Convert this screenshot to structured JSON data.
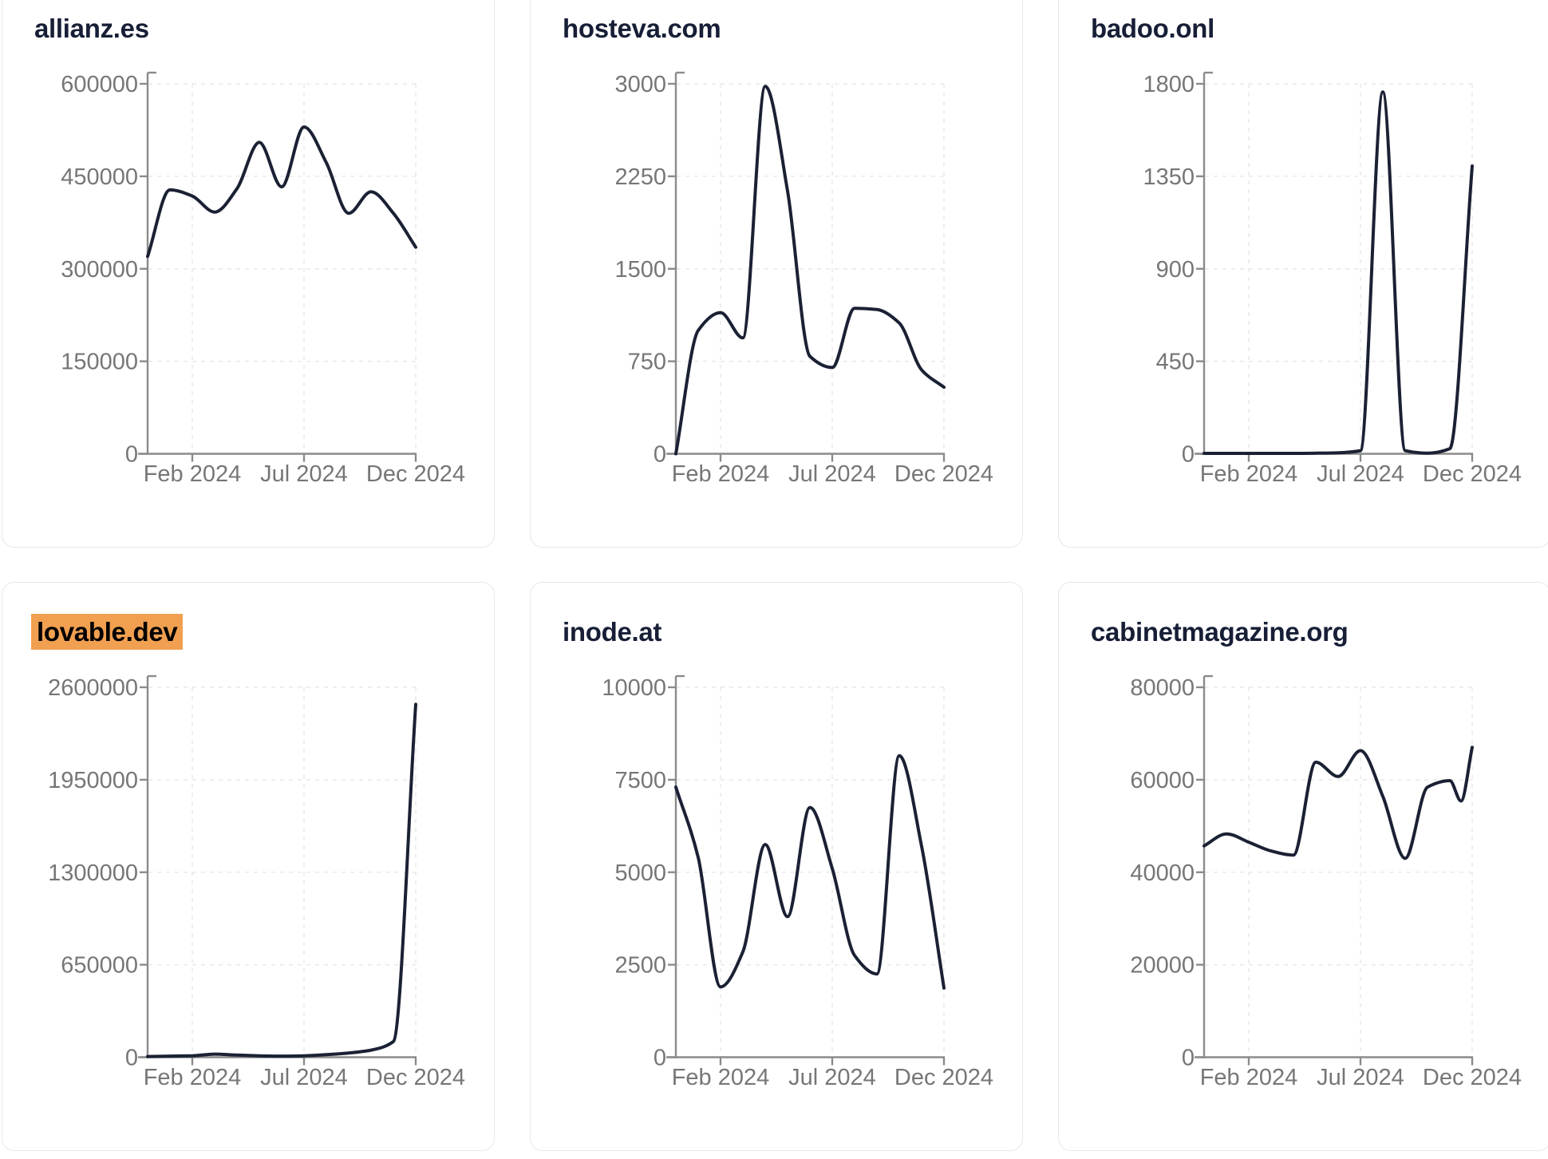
{
  "page": {
    "description": "Dashboard grid of six website-traffic line charts for 2024",
    "x_axis_note": "x = months since Dec 2023 (0 = Dec 2023, 12 = Dec 2024)"
  },
  "colors": {
    "line": "#1b2134",
    "title": "#171e36",
    "axis": "#8b8b8b",
    "tick_label": "#767676",
    "grid": "#e9e9e9",
    "card_border": "#e4e8ee",
    "highlight_bg": "#f0a050",
    "highlight_text": "#000000",
    "background": "#ffffff"
  },
  "chart_data": {
    "type": "line",
    "x_ticks": {
      "months": [
        2,
        7,
        12
      ],
      "labels": [
        "Feb 2024",
        "Jul 2024",
        "Dec 2024"
      ]
    },
    "x_unit": "months since Dec 2023 (0 = Dec 2023, 12 = Dec 2024)",
    "grid": true,
    "legend": false,
    "charts": [
      {
        "title": "allianz.es",
        "highlighted": false,
        "ylim": [
          0,
          600000
        ],
        "y_ticks": [
          0,
          150000,
          300000,
          450000,
          600000
        ],
        "x": [
          0,
          1,
          2,
          3,
          4,
          5,
          6,
          7,
          8,
          9,
          10,
          11,
          12
        ],
        "values": [
          320000,
          428000,
          418000,
          392000,
          430000,
          505000,
          433000,
          530000,
          472000,
          390000,
          425000,
          390000,
          335000
        ]
      },
      {
        "title": "hosteva.com",
        "highlighted": false,
        "ylim": [
          0,
          3000
        ],
        "y_ticks": [
          0,
          750,
          1500,
          2250,
          3000
        ],
        "x": [
          0,
          1,
          2,
          3,
          4,
          5,
          6,
          7,
          8,
          9,
          10,
          11,
          12
        ],
        "values": [
          0,
          1000,
          1145,
          940,
          2980,
          2130,
          790,
          700,
          1180,
          1170,
          1060,
          680,
          540
        ]
      },
      {
        "title": "badoo.onl",
        "highlighted": false,
        "ylim": [
          0,
          1800
        ],
        "y_ticks": [
          0,
          450,
          900,
          1350,
          1800
        ],
        "x": [
          0,
          1,
          2,
          3,
          4,
          5,
          6,
          7,
          8,
          9,
          10,
          11,
          12
        ],
        "values": [
          2,
          2,
          2,
          2,
          2,
          3,
          5,
          15,
          1760,
          15,
          3,
          25,
          1400
        ]
      },
      {
        "title": "lovable.dev",
        "highlighted": true,
        "ylim": [
          0,
          2600000
        ],
        "y_ticks": [
          0,
          650000,
          1300000,
          1950000,
          2600000
        ],
        "x": [
          0,
          1,
          2,
          3,
          4,
          5,
          6,
          7,
          8,
          9,
          10,
          11,
          12
        ],
        "values": [
          5000,
          8000,
          10000,
          22000,
          15000,
          10000,
          8000,
          10000,
          18000,
          30000,
          50000,
          110000,
          2480000
        ]
      },
      {
        "title": "inode.at",
        "highlighted": false,
        "ylim": [
          0,
          10000
        ],
        "y_ticks": [
          0,
          2500,
          5000,
          7500,
          10000
        ],
        "x": [
          0,
          1,
          2,
          3,
          4,
          5,
          6,
          7,
          8,
          9,
          10,
          11,
          12
        ],
        "values": [
          7300,
          5400,
          1900,
          2850,
          5750,
          3800,
          6750,
          5100,
          2750,
          2250,
          8150,
          5700,
          1870
        ]
      },
      {
        "title": "cabinetmagazine.org",
        "highlighted": false,
        "ylim": [
          0,
          80000
        ],
        "y_ticks": [
          0,
          20000,
          40000,
          60000,
          80000
        ],
        "x": [
          0,
          1,
          2,
          3,
          4,
          5,
          6,
          7,
          8,
          9,
          10,
          11,
          11.5,
          12
        ],
        "values": [
          45700,
          48300,
          46500,
          44600,
          43700,
          63800,
          60700,
          66300,
          56400,
          43000,
          58400,
          59800,
          55400,
          67000
        ]
      }
    ]
  }
}
